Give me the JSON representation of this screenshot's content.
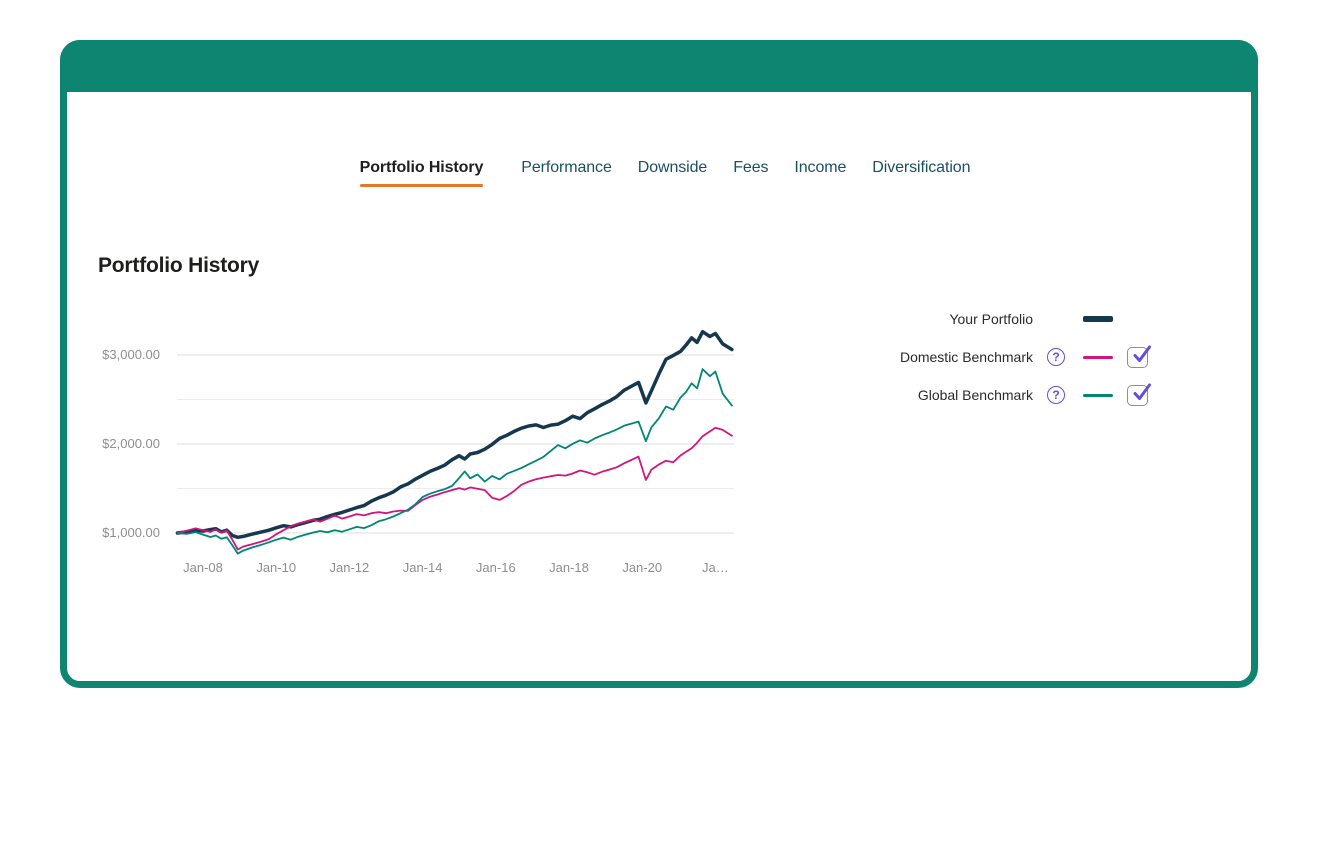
{
  "page_title": "Portfolio History",
  "colors": {
    "frame_teal": "#0E8570",
    "tab_underline_orange": "#E87722",
    "purple": "#6450D8",
    "portfolio_navy": "#16384F",
    "domestic_magenta": "#D2157D",
    "global_teal": "#008577"
  },
  "window": {
    "control_dots": 3
  },
  "tabs": [
    {
      "label": "Portfolio History",
      "active": true
    },
    {
      "label": "Performance",
      "active": false
    },
    {
      "label": "Downside",
      "active": false
    },
    {
      "label": "Fees",
      "active": false
    },
    {
      "label": "Income",
      "active": false
    },
    {
      "label": "Diversification",
      "active": false
    }
  ],
  "legend": {
    "help_glyph": "?",
    "rows": [
      {
        "label": "Your Portfolio",
        "has_help": false,
        "has_checkbox": false
      },
      {
        "label": "Domestic Benchmark",
        "has_help": true,
        "has_checkbox": true,
        "checked": true
      },
      {
        "label": "Global Benchmark",
        "has_help": true,
        "has_checkbox": true,
        "checked": true
      }
    ]
  },
  "chart_data": {
    "type": "line",
    "title": "Portfolio History",
    "xlabel": "",
    "ylabel": "",
    "xlim": [
      2007.3,
      2022.45
    ],
    "ylim": [
      700,
      3300
    ],
    "grid": true,
    "legend_position": "right",
    "y_ticks": [
      {
        "value": 1000,
        "label": "$1,000.00"
      },
      {
        "value": 2000,
        "label": "$2,000.00"
      },
      {
        "value": 3000,
        "label": "$3,000.00"
      }
    ],
    "gridlines": [
      1000,
      1500,
      2000,
      2500,
      3000
    ],
    "x_ticks": [
      {
        "value": 2008,
        "label": "Jan-08"
      },
      {
        "value": 2010,
        "label": "Jan-10"
      },
      {
        "value": 2012,
        "label": "Jan-12"
      },
      {
        "value": 2014,
        "label": "Jan-14"
      },
      {
        "value": 2016,
        "label": "Jan-16"
      },
      {
        "value": 2018,
        "label": "Jan-18"
      },
      {
        "value": 2020,
        "label": "Jan-20"
      },
      {
        "value": 2022,
        "label": "Ja…"
      }
    ],
    "x": [
      2007.3,
      2007.55,
      2007.8,
      2008.0,
      2008.2,
      2008.35,
      2008.5,
      2008.65,
      2008.8,
      2008.95,
      2009.1,
      2009.35,
      2009.6,
      2009.8,
      2010.0,
      2010.2,
      2010.4,
      2010.6,
      2010.8,
      2011.0,
      2011.2,
      2011.4,
      2011.6,
      2011.8,
      2012.0,
      2012.2,
      2012.4,
      2012.6,
      2012.8,
      2013.0,
      2013.2,
      2013.4,
      2013.6,
      2013.8,
      2014.0,
      2014.2,
      2014.4,
      2014.6,
      2014.8,
      2015.0,
      2015.15,
      2015.3,
      2015.5,
      2015.7,
      2015.9,
      2016.1,
      2016.3,
      2016.5,
      2016.7,
      2016.9,
      2017.1,
      2017.3,
      2017.5,
      2017.7,
      2017.9,
      2018.1,
      2018.3,
      2018.5,
      2018.7,
      2018.9,
      2019.1,
      2019.3,
      2019.5,
      2019.9,
      2020.1,
      2020.25,
      2020.45,
      2020.65,
      2020.85,
      2021.05,
      2021.2,
      2021.35,
      2021.5,
      2021.65,
      2021.85,
      2022.0,
      2022.2,
      2022.45
    ],
    "series": [
      {
        "name": "Your Portfolio",
        "color": "#16384F",
        "line_width": 3.5,
        "values": [
          1000,
          1012,
          1030,
          1022,
          1038,
          1048,
          1012,
          1032,
          972,
          952,
          962,
          988,
          1012,
          1032,
          1058,
          1082,
          1068,
          1095,
          1118,
          1142,
          1155,
          1185,
          1210,
          1232,
          1258,
          1285,
          1308,
          1358,
          1395,
          1425,
          1462,
          1518,
          1552,
          1605,
          1648,
          1692,
          1725,
          1762,
          1822,
          1868,
          1832,
          1888,
          1905,
          1942,
          1995,
          2062,
          2098,
          2142,
          2178,
          2202,
          2215,
          2185,
          2212,
          2222,
          2262,
          2312,
          2285,
          2352,
          2395,
          2442,
          2482,
          2532,
          2602,
          2692,
          2462,
          2598,
          2782,
          2952,
          2995,
          3042,
          3112,
          3192,
          3142,
          3262,
          3208,
          3242,
          3125,
          3062
        ]
      },
      {
        "name": "Domestic Benchmark",
        "color": "#D2157D",
        "line_width": 1.8,
        "values": [
          1000,
          1025,
          1052,
          1030,
          1012,
          1040,
          1005,
          1028,
          925,
          815,
          848,
          875,
          905,
          932,
          985,
          1032,
          1075,
          1105,
          1128,
          1152,
          1128,
          1160,
          1195,
          1162,
          1185,
          1212,
          1198,
          1222,
          1235,
          1222,
          1242,
          1252,
          1248,
          1312,
          1372,
          1408,
          1432,
          1458,
          1482,
          1505,
          1488,
          1512,
          1498,
          1482,
          1395,
          1372,
          1415,
          1472,
          1542,
          1578,
          1605,
          1622,
          1638,
          1652,
          1645,
          1668,
          1702,
          1682,
          1655,
          1688,
          1712,
          1738,
          1782,
          1858,
          1595,
          1712,
          1768,
          1812,
          1795,
          1872,
          1912,
          1952,
          2015,
          2088,
          2142,
          2182,
          2158,
          2092
        ]
      },
      {
        "name": "Global Benchmark",
        "color": "#008577",
        "line_width": 1.8,
        "values": [
          1000,
          990,
          1010,
          982,
          955,
          972,
          935,
          952,
          862,
          768,
          802,
          838,
          868,
          895,
          925,
          948,
          925,
          958,
          982,
          1005,
          1022,
          1008,
          1032,
          1015,
          1042,
          1068,
          1055,
          1088,
          1132,
          1155,
          1185,
          1222,
          1262,
          1322,
          1405,
          1442,
          1468,
          1492,
          1528,
          1618,
          1692,
          1615,
          1658,
          1578,
          1642,
          1602,
          1665,
          1698,
          1732,
          1772,
          1812,
          1855,
          1922,
          1988,
          1952,
          2002,
          2042,
          2015,
          2062,
          2098,
          2128,
          2162,
          2205,
          2252,
          2032,
          2188,
          2285,
          2422,
          2385,
          2522,
          2585,
          2682,
          2625,
          2842,
          2762,
          2815,
          2565,
          2432
        ]
      }
    ]
  }
}
